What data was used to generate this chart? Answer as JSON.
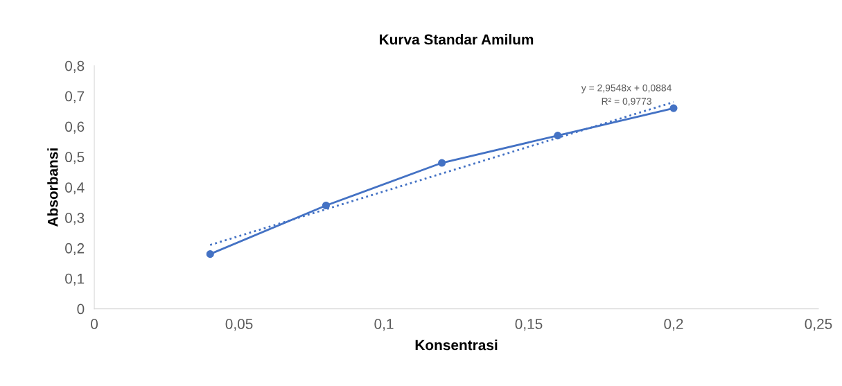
{
  "chart_data": {
    "type": "line",
    "title": "Kurva Standar Amilum",
    "xlabel": "Konsentrasi",
    "ylabel": "Absorbansi",
    "x": [
      0.04,
      0.08,
      0.12,
      0.16,
      0.2
    ],
    "series": [
      {
        "color": "#4472c4",
        "values": [
          0.18,
          0.34,
          0.48,
          0.57,
          0.66
        ],
        "marker": "circle",
        "line_style": "solid"
      },
      {
        "type": "line",
        "color": "#4472c4",
        "x": [
          0.04,
          0.2
        ],
        "values": [
          0.21,
          0.68
        ],
        "marker": "none",
        "line_style": "dotted"
      }
    ],
    "annotations": [
      "y = 2,9548x + 0,0884",
      "R² = 0,9773"
    ],
    "xlim": [
      0,
      0.25
    ],
    "ylim": [
      0,
      0.8
    ],
    "xticks": [
      0,
      {
        "value": 0.05,
        "label": "0,05"
      },
      {
        "value": 0.1,
        "label": "0,1"
      },
      {
        "value": 0.15,
        "label": "0,15"
      },
      {
        "value": 0.2,
        "label": "0,2"
      },
      {
        "value": 0.25,
        "label": "0,25"
      }
    ],
    "yticks": [
      0,
      {
        "value": 0.1,
        "label": "0,1"
      },
      {
        "value": 0.2,
        "label": "0,2"
      },
      {
        "value": 0.3,
        "label": "0,3"
      },
      {
        "value": 0.4,
        "label": "0,4"
      },
      {
        "value": 0.5,
        "label": "0,5"
      },
      {
        "value": 0.6,
        "label": "0,6"
      },
      {
        "value": 0.7,
        "label": "0,7"
      },
      {
        "value": 0.8,
        "label": "0,8"
      }
    ],
    "grid": false,
    "legend": false
  }
}
